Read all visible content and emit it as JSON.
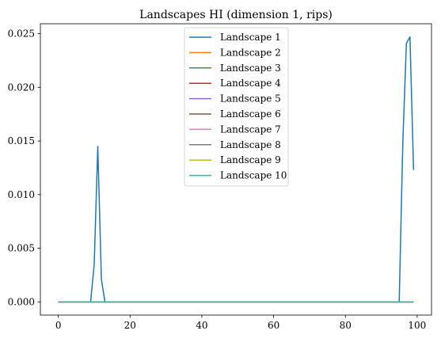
{
  "chart_data": {
    "type": "line",
    "title": "Landscapes HI (dimension 1, rips)",
    "xlabel": "",
    "ylabel": "",
    "xlim": [
      -5,
      104
    ],
    "ylim": [
      -0.00123,
      0.02593
    ],
    "xticks": [
      0,
      20,
      40,
      60,
      80,
      100
    ],
    "yticks": [
      0.0,
      0.005,
      0.01,
      0.015,
      0.02,
      0.025
    ],
    "ytick_labels": [
      "0.000",
      "0.005",
      "0.010",
      "0.015",
      "0.020",
      "0.025"
    ],
    "xtick_labels": [
      "0",
      "20",
      "40",
      "60",
      "80",
      "100"
    ],
    "grid": false,
    "legend": "upper-center",
    "series": [
      {
        "name": "Landscape 1",
        "color": "#1f77b4",
        "x": [
          0,
          9,
          10,
          11,
          12,
          13,
          95,
          96,
          97,
          98,
          99
        ],
        "y": [
          0,
          0,
          0.0035,
          0.0145,
          0.0021,
          0,
          0,
          0.0148,
          0.0241,
          0.0247,
          0.0123
        ]
      },
      {
        "name": "Landscape 2",
        "color": "#ff7f0e",
        "x": [
          0,
          99
        ],
        "y": [
          0,
          0
        ]
      },
      {
        "name": "Landscape 3",
        "color": "#2ca02c",
        "x": [
          0,
          99
        ],
        "y": [
          0,
          0
        ]
      },
      {
        "name": "Landscape 4",
        "color": "#d62728",
        "x": [
          0,
          99
        ],
        "y": [
          0,
          0
        ]
      },
      {
        "name": "Landscape 5",
        "color": "#9467bd",
        "x": [
          0,
          99
        ],
        "y": [
          0,
          0
        ]
      },
      {
        "name": "Landscape 6",
        "color": "#8c564b",
        "x": [
          0,
          99
        ],
        "y": [
          0,
          0
        ]
      },
      {
        "name": "Landscape 7",
        "color": "#e377c2",
        "x": [
          0,
          99
        ],
        "y": [
          0,
          0
        ]
      },
      {
        "name": "Landscape 8",
        "color": "#7f7f7f",
        "x": [
          0,
          99
        ],
        "y": [
          0,
          0
        ]
      },
      {
        "name": "Landscape 9",
        "color": "#bcbd22",
        "x": [
          0,
          99
        ],
        "y": [
          0,
          0
        ]
      },
      {
        "name": "Landscape 10",
        "color": "#17becf",
        "x": [
          0,
          99
        ],
        "y": [
          0,
          0
        ]
      }
    ]
  }
}
